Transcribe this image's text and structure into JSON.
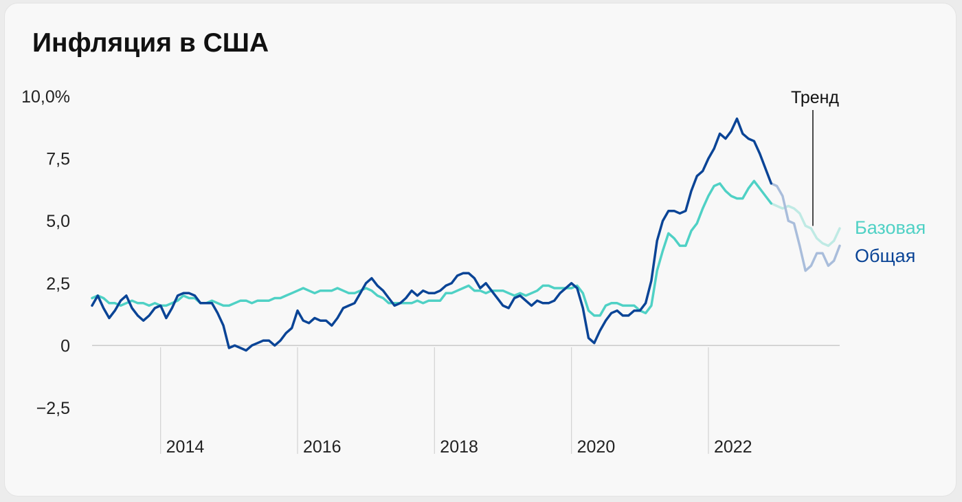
{
  "title": "Инфляция в США",
  "chart_data": {
    "type": "line",
    "title": "Инфляция в США",
    "xlabel": "",
    "ylabel": "",
    "xlim": [
      2013.0,
      2023.917
    ],
    "ylim": [
      -2.5,
      10.0
    ],
    "y_ticks": [
      {
        "value": 10.0,
        "label": "10,0%"
      },
      {
        "value": 7.5,
        "label": "7,5"
      },
      {
        "value": 5.0,
        "label": "5,0"
      },
      {
        "value": 2.5,
        "label": "2,5"
      },
      {
        "value": 0,
        "label": "0"
      },
      {
        "value": -2.5,
        "label": "−2,5"
      }
    ],
    "x_ticks": [
      {
        "value": 2014,
        "label": "2014"
      },
      {
        "value": 2016,
        "label": "2016"
      },
      {
        "value": 2018,
        "label": "2018"
      },
      {
        "value": 2020,
        "label": "2020"
      },
      {
        "value": 2022,
        "label": "2022"
      }
    ],
    "grid": "vertical-lines-at-x-ticks",
    "colors": {
      "base": "#4fd1c5",
      "base_trend": "#bfeae4",
      "total": "#0a4496",
      "total_trend": "#a9bddb",
      "baseline": "#c8c8c8",
      "gridline": "#d2d2d2"
    },
    "trend_start": 2022.917,
    "annotation": {
      "text": "Тренд",
      "x": 2023.5,
      "y": 4.8
    },
    "series": [
      {
        "name": "Базовая",
        "color": "#4fd1c5",
        "points": [
          [
            2013.0,
            1.9
          ],
          [
            2013.083,
            2.0
          ],
          [
            2013.167,
            1.9
          ],
          [
            2013.25,
            1.7
          ],
          [
            2013.333,
            1.7
          ],
          [
            2013.417,
            1.6
          ],
          [
            2013.5,
            1.7
          ],
          [
            2013.583,
            1.8
          ],
          [
            2013.667,
            1.7
          ],
          [
            2013.75,
            1.7
          ],
          [
            2013.833,
            1.6
          ],
          [
            2013.917,
            1.7
          ],
          [
            2014.0,
            1.6
          ],
          [
            2014.083,
            1.6
          ],
          [
            2014.167,
            1.7
          ],
          [
            2014.25,
            1.8
          ],
          [
            2014.333,
            2.0
          ],
          [
            2014.417,
            1.9
          ],
          [
            2014.5,
            1.9
          ],
          [
            2014.583,
            1.7
          ],
          [
            2014.667,
            1.7
          ],
          [
            2014.75,
            1.8
          ],
          [
            2014.833,
            1.7
          ],
          [
            2014.917,
            1.6
          ],
          [
            2015.0,
            1.6
          ],
          [
            2015.083,
            1.7
          ],
          [
            2015.167,
            1.8
          ],
          [
            2015.25,
            1.8
          ],
          [
            2015.333,
            1.7
          ],
          [
            2015.417,
            1.8
          ],
          [
            2015.5,
            1.8
          ],
          [
            2015.583,
            1.8
          ],
          [
            2015.667,
            1.9
          ],
          [
            2015.75,
            1.9
          ],
          [
            2015.833,
            2.0
          ],
          [
            2015.917,
            2.1
          ],
          [
            2016.0,
            2.2
          ],
          [
            2016.083,
            2.3
          ],
          [
            2016.167,
            2.2
          ],
          [
            2016.25,
            2.1
          ],
          [
            2016.333,
            2.2
          ],
          [
            2016.417,
            2.2
          ],
          [
            2016.5,
            2.2
          ],
          [
            2016.583,
            2.3
          ],
          [
            2016.667,
            2.2
          ],
          [
            2016.75,
            2.1
          ],
          [
            2016.833,
            2.1
          ],
          [
            2016.917,
            2.2
          ],
          [
            2017.0,
            2.3
          ],
          [
            2017.083,
            2.2
          ],
          [
            2017.167,
            2.0
          ],
          [
            2017.25,
            1.9
          ],
          [
            2017.333,
            1.7
          ],
          [
            2017.417,
            1.7
          ],
          [
            2017.5,
            1.7
          ],
          [
            2017.583,
            1.7
          ],
          [
            2017.667,
            1.7
          ],
          [
            2017.75,
            1.8
          ],
          [
            2017.833,
            1.7
          ],
          [
            2017.917,
            1.8
          ],
          [
            2018.0,
            1.8
          ],
          [
            2018.083,
            1.8
          ],
          [
            2018.167,
            2.1
          ],
          [
            2018.25,
            2.1
          ],
          [
            2018.333,
            2.2
          ],
          [
            2018.417,
            2.3
          ],
          [
            2018.5,
            2.4
          ],
          [
            2018.583,
            2.2
          ],
          [
            2018.667,
            2.2
          ],
          [
            2018.75,
            2.1
          ],
          [
            2018.833,
            2.2
          ],
          [
            2018.917,
            2.2
          ],
          [
            2019.0,
            2.2
          ],
          [
            2019.083,
            2.1
          ],
          [
            2019.167,
            2.0
          ],
          [
            2019.25,
            2.1
          ],
          [
            2019.333,
            2.0
          ],
          [
            2019.417,
            2.1
          ],
          [
            2019.5,
            2.2
          ],
          [
            2019.583,
            2.4
          ],
          [
            2019.667,
            2.4
          ],
          [
            2019.75,
            2.3
          ],
          [
            2019.833,
            2.3
          ],
          [
            2019.917,
            2.3
          ],
          [
            2020.0,
            2.3
          ],
          [
            2020.083,
            2.4
          ],
          [
            2020.167,
            2.1
          ],
          [
            2020.25,
            1.4
          ],
          [
            2020.333,
            1.2
          ],
          [
            2020.417,
            1.2
          ],
          [
            2020.5,
            1.6
          ],
          [
            2020.583,
            1.7
          ],
          [
            2020.667,
            1.7
          ],
          [
            2020.75,
            1.6
          ],
          [
            2020.833,
            1.6
          ],
          [
            2020.917,
            1.6
          ],
          [
            2021.0,
            1.4
          ],
          [
            2021.083,
            1.3
          ],
          [
            2021.167,
            1.6
          ],
          [
            2021.25,
            3.0
          ],
          [
            2021.333,
            3.8
          ],
          [
            2021.417,
            4.5
          ],
          [
            2021.5,
            4.3
          ],
          [
            2021.583,
            4.0
          ],
          [
            2021.667,
            4.0
          ],
          [
            2021.75,
            4.6
          ],
          [
            2021.833,
            4.9
          ],
          [
            2021.917,
            5.5
          ],
          [
            2022.0,
            6.0
          ],
          [
            2022.083,
            6.4
          ],
          [
            2022.167,
            6.5
          ],
          [
            2022.25,
            6.2
          ],
          [
            2022.333,
            6.0
          ],
          [
            2022.417,
            5.9
          ],
          [
            2022.5,
            5.9
          ],
          [
            2022.583,
            6.3
          ],
          [
            2022.667,
            6.6
          ],
          [
            2022.75,
            6.3
          ],
          [
            2022.833,
            6.0
          ],
          [
            2022.917,
            5.7
          ],
          [
            2023.0,
            5.6
          ],
          [
            2023.083,
            5.5
          ],
          [
            2023.167,
            5.6
          ],
          [
            2023.25,
            5.5
          ],
          [
            2023.333,
            5.3
          ],
          [
            2023.417,
            4.8
          ],
          [
            2023.5,
            4.7
          ],
          [
            2023.583,
            4.3
          ],
          [
            2023.667,
            4.1
          ],
          [
            2023.75,
            4.0
          ],
          [
            2023.833,
            4.2
          ],
          [
            2023.917,
            4.7
          ]
        ]
      },
      {
        "name": "Общая",
        "color": "#0a4496",
        "points": [
          [
            2013.0,
            1.6
          ],
          [
            2013.083,
            2.0
          ],
          [
            2013.167,
            1.5
          ],
          [
            2013.25,
            1.1
          ],
          [
            2013.333,
            1.4
          ],
          [
            2013.417,
            1.8
          ],
          [
            2013.5,
            2.0
          ],
          [
            2013.583,
            1.5
          ],
          [
            2013.667,
            1.2
          ],
          [
            2013.75,
            1.0
          ],
          [
            2013.833,
            1.2
          ],
          [
            2013.917,
            1.5
          ],
          [
            2014.0,
            1.6
          ],
          [
            2014.083,
            1.1
          ],
          [
            2014.167,
            1.5
          ],
          [
            2014.25,
            2.0
          ],
          [
            2014.333,
            2.1
          ],
          [
            2014.417,
            2.1
          ],
          [
            2014.5,
            2.0
          ],
          [
            2014.583,
            1.7
          ],
          [
            2014.667,
            1.7
          ],
          [
            2014.75,
            1.7
          ],
          [
            2014.833,
            1.3
          ],
          [
            2014.917,
            0.8
          ],
          [
            2015.0,
            -0.1
          ],
          [
            2015.083,
            0.0
          ],
          [
            2015.167,
            -0.1
          ],
          [
            2015.25,
            -0.2
          ],
          [
            2015.333,
            0.0
          ],
          [
            2015.417,
            0.1
          ],
          [
            2015.5,
            0.2
          ],
          [
            2015.583,
            0.2
          ],
          [
            2015.667,
            0.0
          ],
          [
            2015.75,
            0.2
          ],
          [
            2015.833,
            0.5
          ],
          [
            2015.917,
            0.7
          ],
          [
            2016.0,
            1.4
          ],
          [
            2016.083,
            1.0
          ],
          [
            2016.167,
            0.9
          ],
          [
            2016.25,
            1.1
          ],
          [
            2016.333,
            1.0
          ],
          [
            2016.417,
            1.0
          ],
          [
            2016.5,
            0.8
          ],
          [
            2016.583,
            1.1
          ],
          [
            2016.667,
            1.5
          ],
          [
            2016.75,
            1.6
          ],
          [
            2016.833,
            1.7
          ],
          [
            2016.917,
            2.1
          ],
          [
            2017.0,
            2.5
          ],
          [
            2017.083,
            2.7
          ],
          [
            2017.167,
            2.4
          ],
          [
            2017.25,
            2.2
          ],
          [
            2017.333,
            1.9
          ],
          [
            2017.417,
            1.6
          ],
          [
            2017.5,
            1.7
          ],
          [
            2017.583,
            1.9
          ],
          [
            2017.667,
            2.2
          ],
          [
            2017.75,
            2.0
          ],
          [
            2017.833,
            2.2
          ],
          [
            2017.917,
            2.1
          ],
          [
            2018.0,
            2.1
          ],
          [
            2018.083,
            2.2
          ],
          [
            2018.167,
            2.4
          ],
          [
            2018.25,
            2.5
          ],
          [
            2018.333,
            2.8
          ],
          [
            2018.417,
            2.9
          ],
          [
            2018.5,
            2.9
          ],
          [
            2018.583,
            2.7
          ],
          [
            2018.667,
            2.3
          ],
          [
            2018.75,
            2.5
          ],
          [
            2018.833,
            2.2
          ],
          [
            2018.917,
            1.9
          ],
          [
            2019.0,
            1.6
          ],
          [
            2019.083,
            1.5
          ],
          [
            2019.167,
            1.9
          ],
          [
            2019.25,
            2.0
          ],
          [
            2019.333,
            1.8
          ],
          [
            2019.417,
            1.6
          ],
          [
            2019.5,
            1.8
          ],
          [
            2019.583,
            1.7
          ],
          [
            2019.667,
            1.7
          ],
          [
            2019.75,
            1.8
          ],
          [
            2019.833,
            2.1
          ],
          [
            2019.917,
            2.3
          ],
          [
            2020.0,
            2.5
          ],
          [
            2020.083,
            2.3
          ],
          [
            2020.167,
            1.5
          ],
          [
            2020.25,
            0.3
          ],
          [
            2020.333,
            0.1
          ],
          [
            2020.417,
            0.6
          ],
          [
            2020.5,
            1.0
          ],
          [
            2020.583,
            1.3
          ],
          [
            2020.667,
            1.4
          ],
          [
            2020.75,
            1.2
          ],
          [
            2020.833,
            1.2
          ],
          [
            2020.917,
            1.4
          ],
          [
            2021.0,
            1.4
          ],
          [
            2021.083,
            1.7
          ],
          [
            2021.167,
            2.6
          ],
          [
            2021.25,
            4.2
          ],
          [
            2021.333,
            5.0
          ],
          [
            2021.417,
            5.4
          ],
          [
            2021.5,
            5.4
          ],
          [
            2021.583,
            5.3
          ],
          [
            2021.667,
            5.4
          ],
          [
            2021.75,
            6.2
          ],
          [
            2021.833,
            6.8
          ],
          [
            2021.917,
            7.0
          ],
          [
            2022.0,
            7.5
          ],
          [
            2022.083,
            7.9
          ],
          [
            2022.167,
            8.5
          ],
          [
            2022.25,
            8.3
          ],
          [
            2022.333,
            8.6
          ],
          [
            2022.417,
            9.1
          ],
          [
            2022.5,
            8.5
          ],
          [
            2022.583,
            8.3
          ],
          [
            2022.667,
            8.2
          ],
          [
            2022.75,
            7.7
          ],
          [
            2022.833,
            7.1
          ],
          [
            2022.917,
            6.5
          ],
          [
            2023.0,
            6.4
          ],
          [
            2023.083,
            6.0
          ],
          [
            2023.167,
            5.0
          ],
          [
            2023.25,
            4.9
          ],
          [
            2023.333,
            4.0
          ],
          [
            2023.417,
            3.0
          ],
          [
            2023.5,
            3.2
          ],
          [
            2023.583,
            3.7
          ],
          [
            2023.667,
            3.7
          ],
          [
            2023.75,
            3.2
          ],
          [
            2023.833,
            3.4
          ],
          [
            2023.917,
            4.0
          ]
        ]
      }
    ],
    "legend": {
      "placement": "right-end-of-lines",
      "entries": [
        "Базовая",
        "Общая"
      ]
    }
  }
}
